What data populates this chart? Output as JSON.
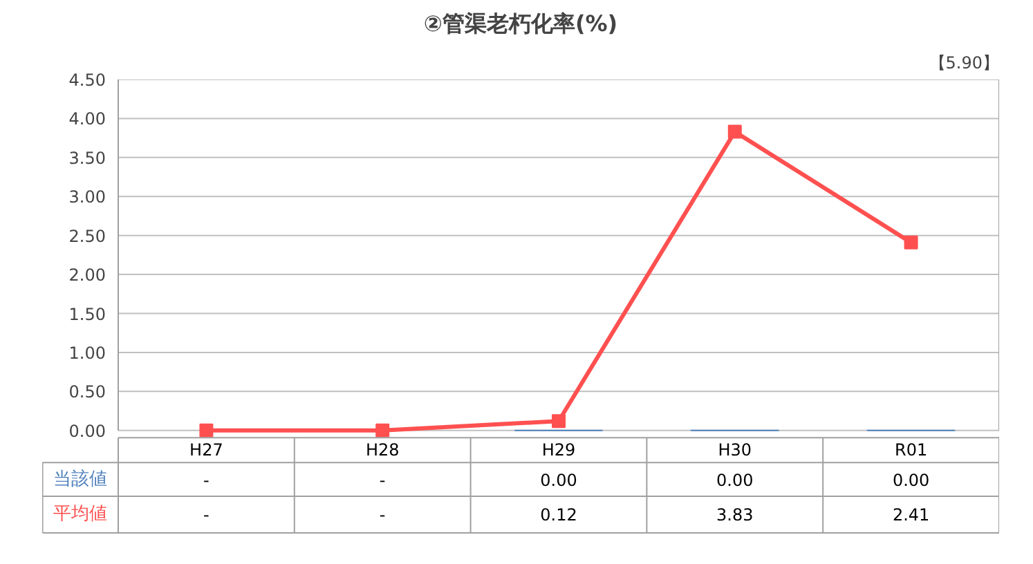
{
  "chart_data": {
    "type": "line",
    "title": "②管渠老朽化率(%)",
    "categories": [
      "H27",
      "H28",
      "H29",
      "H30",
      "R01"
    ],
    "series": [
      {
        "name": "当該値",
        "type": "bar",
        "color": "#4f81bd",
        "values": [
          null,
          null,
          0,
          0,
          0
        ],
        "value_labels": [
          "-",
          "-",
          "0.00",
          "0.00",
          "0.00"
        ]
      },
      {
        "name": "平均値",
        "color": "#ff5050",
        "values": [
          0,
          0,
          0.12,
          3.83,
          2.41
        ],
        "value_labels": [
          "-",
          "-",
          "0.12",
          "3.83",
          "2.41"
        ]
      }
    ],
    "ylim": [
      0,
      4.5
    ],
    "yticks": [
      {
        "value": 0,
        "label": "0.00"
      },
      {
        "value": 0.5,
        "label": "0.50"
      },
      {
        "value": 1,
        "label": "1.00"
      },
      {
        "value": 1.5,
        "label": "1.50"
      },
      {
        "value": 2,
        "label": "2.00"
      },
      {
        "value": 2.5,
        "label": "2.50"
      },
      {
        "value": 3,
        "label": "3.00"
      },
      {
        "value": 3.5,
        "label": "3.50"
      },
      {
        "value": 4,
        "label": "4.00"
      },
      {
        "value": 4.5,
        "label": "4.50"
      }
    ],
    "grid": "y",
    "marker": "square",
    "line_style": "solid",
    "annotations": [
      "【5.90】"
    ]
  }
}
